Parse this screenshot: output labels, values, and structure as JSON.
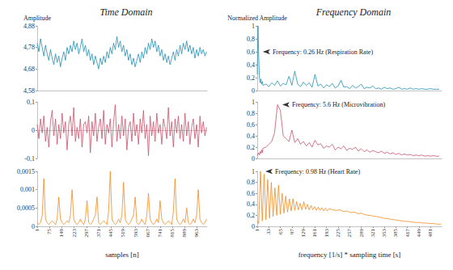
{
  "chart_data": [
    {
      "type": "line",
      "title": "Time Domain",
      "ylabel": "Amplitude",
      "color": "#1f8fb3",
      "grid": false,
      "tick_labels": "y",
      "xlim": [
        1,
        1024
      ],
      "ylim": [
        4.58,
        4.88
      ],
      "yticks": [
        {
          "value": 4.58,
          "label": "4,58"
        },
        {
          "value": 4.68,
          "label": "4,68"
        },
        {
          "value": 4.78,
          "label": "4,78"
        },
        {
          "value": 4.88,
          "label": "4,88"
        }
      ],
      "x": [
        1,
        11,
        21,
        31,
        41,
        51,
        61,
        71,
        81,
        91,
        101,
        111,
        121,
        131,
        141,
        151,
        161,
        171,
        181,
        191,
        201,
        211,
        221,
        231,
        241,
        251,
        261,
        271,
        281,
        291,
        301,
        311,
        321,
        331,
        341,
        351,
        361,
        371,
        381,
        391,
        401,
        411,
        421,
        431,
        441,
        451,
        461,
        471,
        481,
        491,
        501,
        511,
        521,
        531,
        541,
        551,
        561,
        571,
        581,
        591,
        601,
        611,
        621,
        631,
        641,
        651,
        661,
        671,
        681,
        691,
        701,
        711,
        721,
        731,
        741,
        751,
        761,
        771,
        781,
        791,
        801,
        811,
        821,
        831,
        841,
        851,
        861,
        871,
        881,
        891,
        901,
        911,
        921,
        931,
        941,
        951,
        961,
        971,
        981,
        991,
        1001,
        1011,
        1021
      ],
      "values": [
        4.8,
        4.76,
        4.82,
        4.78,
        4.74,
        4.79,
        4.75,
        4.72,
        4.77,
        4.73,
        4.7,
        4.75,
        4.71,
        4.74,
        4.69,
        4.73,
        4.76,
        4.72,
        4.78,
        4.75,
        4.79,
        4.76,
        4.81,
        4.77,
        4.8,
        4.75,
        4.78,
        4.82,
        4.76,
        4.79,
        4.74,
        4.77,
        4.72,
        4.75,
        4.7,
        4.74,
        4.71,
        4.68,
        4.73,
        4.7,
        4.74,
        4.71,
        4.76,
        4.73,
        4.78,
        4.75,
        4.8,
        4.77,
        4.83,
        4.78,
        4.81,
        4.76,
        4.79,
        4.74,
        4.77,
        4.72,
        4.75,
        4.7,
        4.73,
        4.69,
        4.72,
        4.75,
        4.71,
        4.76,
        4.73,
        4.78,
        4.75,
        4.8,
        4.77,
        4.82,
        4.78,
        4.81,
        4.76,
        4.79,
        4.74,
        4.77,
        4.72,
        4.75,
        4.71,
        4.74,
        4.7,
        4.73,
        4.76,
        4.72,
        4.77,
        4.74,
        4.79,
        4.75,
        4.8,
        4.77,
        4.81,
        4.76,
        4.79,
        4.75,
        4.78,
        4.73,
        4.77,
        4.74,
        4.78,
        4.75,
        4.77,
        4.74,
        4.76
      ]
    },
    {
      "type": "line",
      "title": "Frequency Domain",
      "ylabel": "Normalized Amplitude",
      "color": "#1f8fb3",
      "grid": false,
      "tick_labels": "y",
      "xlim": [
        1,
        512
      ],
      "ylim": [
        0,
        1
      ],
      "yticks": [
        0,
        {
          "value": 0.2,
          "label": "0,2"
        },
        {
          "value": 0.4,
          "label": "0,4"
        },
        {
          "value": 0.6,
          "label": "0,6"
        },
        {
          "value": 0.8,
          "label": "0,8"
        },
        1
      ],
      "annotations": [
        {
          "text": "Frequency: 0.26 Hz (Respiration Rate)",
          "x": 3,
          "y": 0.6
        }
      ],
      "x": [
        1,
        3,
        5,
        7,
        9,
        11,
        13,
        15,
        17,
        25,
        33,
        41,
        49,
        57,
        65,
        73,
        81,
        89,
        97,
        105,
        113,
        121,
        129,
        137,
        145,
        153,
        161,
        169,
        177,
        185,
        193,
        201,
        209,
        217,
        225,
        233,
        241,
        249,
        257,
        265,
        273,
        281,
        289,
        297,
        305,
        313,
        321,
        329,
        337,
        345,
        353,
        361,
        369,
        377,
        385,
        393,
        401,
        409,
        417,
        425,
        433,
        441,
        449,
        457,
        465,
        473,
        481,
        489,
        497,
        505
      ],
      "values": [
        0.25,
        1.0,
        0.55,
        0.2,
        0.12,
        0.18,
        0.1,
        0.14,
        0.08,
        0.1,
        0.06,
        0.12,
        0.08,
        0.15,
        0.07,
        0.11,
        0.09,
        0.22,
        0.08,
        0.3,
        0.1,
        0.06,
        0.13,
        0.08,
        0.12,
        0.05,
        0.25,
        0.07,
        0.1,
        0.04,
        0.09,
        0.06,
        0.11,
        0.04,
        0.07,
        0.16,
        0.05,
        0.06,
        0.03,
        0.08,
        0.04,
        0.06,
        0.1,
        0.03,
        0.05,
        0.04,
        0.07,
        0.03,
        0.04,
        0.02,
        0.05,
        0.03,
        0.04,
        0.02,
        0.03,
        0.05,
        0.02,
        0.03,
        0.02,
        0.04,
        0.02,
        0.03,
        0.02,
        0.03,
        0.02,
        0.02,
        0.03,
        0.02,
        0.02,
        0.02
      ]
    },
    {
      "type": "line",
      "color": "#c9516b",
      "grid": false,
      "tick_labels": "y",
      "xlim": [
        1,
        1024
      ],
      "ylim": [
        -0.1,
        0.1
      ],
      "yticks": [
        {
          "value": -0.1,
          "label": "-0,1"
        },
        0,
        {
          "value": 0.1,
          "label": "0,1"
        }
      ],
      "x": [
        1,
        11,
        21,
        31,
        41,
        51,
        61,
        71,
        81,
        91,
        101,
        111,
        121,
        131,
        141,
        151,
        161,
        171,
        181,
        191,
        201,
        211,
        221,
        231,
        241,
        251,
        261,
        271,
        281,
        291,
        301,
        311,
        321,
        331,
        341,
        351,
        361,
        371,
        381,
        391,
        401,
        411,
        421,
        431,
        441,
        451,
        461,
        471,
        481,
        491,
        501,
        511,
        521,
        531,
        541,
        551,
        561,
        571,
        581,
        591,
        601,
        611,
        621,
        631,
        641,
        651,
        661,
        671,
        681,
        691,
        701,
        711,
        721,
        731,
        741,
        751,
        761,
        771,
        781,
        791,
        801,
        811,
        821,
        831,
        841,
        851,
        861,
        871,
        881,
        891,
        901,
        911,
        921,
        931,
        941,
        951,
        961,
        971,
        981,
        991,
        1001,
        1011,
        1021
      ],
      "values": [
        0.02,
        -0.03,
        0.04,
        -0.01,
        0.05,
        -0.04,
        0.01,
        -0.06,
        0.03,
        0.07,
        -0.02,
        0.04,
        -0.05,
        0.02,
        -0.03,
        0.06,
        -0.01,
        0.03,
        -0.07,
        0.02,
        0.05,
        -0.02,
        0.08,
        -0.04,
        0.01,
        -0.03,
        0.04,
        -0.06,
        0.02,
        0.03,
        -0.01,
        0.05,
        -0.08,
        0.03,
        -0.02,
        0.06,
        -0.04,
        0.01,
        0.04,
        -0.03,
        0.07,
        -0.05,
        0.02,
        -0.01,
        0.04,
        -0.06,
        0.03,
        0.09,
        -0.04,
        0.02,
        -0.03,
        0.05,
        -0.02,
        0.04,
        -0.07,
        0.01,
        0.03,
        -0.04,
        0.06,
        -0.02,
        0.02,
        -0.05,
        0.04,
        -0.01,
        0.07,
        -0.03,
        0.02,
        -0.09,
        0.05,
        -0.02,
        0.03,
        -0.04,
        0.06,
        -0.01,
        0.02,
        -0.05,
        0.04,
        0.01,
        -0.03,
        0.08,
        -0.02,
        0.03,
        -0.06,
        0.04,
        -0.01,
        0.05,
        -0.03,
        0.02,
        -0.04,
        0.06,
        -0.02,
        0.03,
        -0.05,
        0.01,
        0.04,
        -0.03,
        0.02,
        -0.06,
        0.05,
        -0.01,
        0.03,
        -0.02,
        0.01
      ]
    },
    {
      "type": "line",
      "color": "#c9516b",
      "grid": false,
      "tick_labels": "y",
      "xlim": [
        1,
        512
      ],
      "ylim": [
        0,
        1
      ],
      "yticks": [
        0,
        {
          "value": 0.2,
          "label": "0,2"
        },
        {
          "value": 0.4,
          "label": "0,4"
        },
        {
          "value": 0.6,
          "label": "0,6"
        },
        {
          "value": 0.8,
          "label": "0,8"
        },
        1
      ],
      "annotations": [
        {
          "text": "Frequency: 5.6 Hz (Microvibration)",
          "x": 57,
          "y": 0.95
        }
      ],
      "x": [
        1,
        3,
        5,
        7,
        9,
        11,
        13,
        15,
        17,
        25,
        33,
        41,
        49,
        57,
        65,
        73,
        81,
        89,
        97,
        105,
        113,
        121,
        129,
        137,
        145,
        153,
        161,
        169,
        177,
        185,
        193,
        201,
        209,
        217,
        225,
        233,
        241,
        249,
        257,
        265,
        273,
        281,
        289,
        297,
        305,
        313,
        321,
        329,
        337,
        345,
        353,
        361,
        369,
        377,
        385,
        393,
        401,
        409,
        417,
        425,
        433,
        441,
        449,
        457,
        465,
        473,
        481,
        489,
        497,
        505
      ],
      "values": [
        0.05,
        0.08,
        0.1,
        0.06,
        0.12,
        0.09,
        0.15,
        0.1,
        0.18,
        0.2,
        0.25,
        0.3,
        0.45,
        0.95,
        0.85,
        0.4,
        0.35,
        0.3,
        0.5,
        0.28,
        0.35,
        0.25,
        0.3,
        0.22,
        0.28,
        0.2,
        0.32,
        0.24,
        0.26,
        0.18,
        0.22,
        0.2,
        0.25,
        0.15,
        0.2,
        0.17,
        0.22,
        0.14,
        0.18,
        0.16,
        0.2,
        0.13,
        0.17,
        0.12,
        0.15,
        0.11,
        0.14,
        0.12,
        0.1,
        0.13,
        0.09,
        0.11,
        0.08,
        0.1,
        0.07,
        0.09,
        0.06,
        0.08,
        0.06,
        0.07,
        0.05,
        0.06,
        0.05,
        0.06,
        0.04,
        0.05,
        0.04,
        0.05,
        0.04,
        0.04
      ]
    },
    {
      "type": "line",
      "xlabel": "samples [n]",
      "color": "#f28a1e",
      "grid": false,
      "xlim": [
        1,
        1024
      ],
      "ylim": [
        0,
        0.0015
      ],
      "xticks": [
        1,
        75,
        149,
        223,
        297,
        371,
        445,
        519,
        593,
        667,
        741,
        815,
        889,
        963
      ],
      "yticks": [
        0,
        {
          "value": 0.0005,
          "label": "0,0005"
        },
        {
          "value": 0.001,
          "label": "0,001"
        },
        {
          "value": 0.0015,
          "label": "0,0015"
        }
      ],
      "x": [
        1,
        11,
        21,
        31,
        41,
        51,
        61,
        71,
        81,
        91,
        101,
        111,
        121,
        131,
        141,
        151,
        161,
        171,
        181,
        191,
        201,
        211,
        221,
        231,
        241,
        251,
        261,
        271,
        281,
        291,
        301,
        311,
        321,
        331,
        341,
        351,
        361,
        371,
        381,
        391,
        401,
        411,
        421,
        431,
        441,
        451,
        461,
        471,
        481,
        491,
        501,
        511,
        521,
        531,
        541,
        551,
        561,
        571,
        581,
        591,
        601,
        611,
        621,
        631,
        641,
        651,
        661,
        671,
        681,
        691,
        701,
        711,
        721,
        731,
        741,
        751,
        761,
        771,
        781,
        791,
        801,
        811,
        821,
        831,
        841,
        851,
        861,
        871,
        881,
        891,
        901,
        911,
        921,
        931,
        941,
        951,
        961,
        971,
        981,
        991,
        1001,
        1011,
        1021
      ],
      "values": [
        0.0001,
        5e-05,
        0.0001,
        0.0003,
        0.0013,
        0.0002,
        0.0001,
        5e-05,
        0.0001,
        0.00015,
        0.0001,
        5e-05,
        0.0002,
        0.0008,
        0.0002,
        0.0001,
        5e-05,
        0.0001,
        0.00015,
        0.0001,
        0.0003,
        0.001,
        0.0002,
        0.0001,
        5e-05,
        0.0001,
        0.0002,
        0.0001,
        5e-05,
        0.0002,
        0.0007,
        0.0001,
        5e-05,
        0.0001,
        0.0002,
        0.0003,
        0.0008,
        0.0001,
        5e-05,
        0.0001,
        0.00015,
        0.0001,
        5e-05,
        0.0004,
        0.0015,
        0.0002,
        0.0001,
        5e-05,
        0.0001,
        0.0002,
        0.0001,
        0.0003,
        0.0012,
        0.0002,
        0.0001,
        5e-05,
        0.0001,
        0.0002,
        0.0003,
        0.0008,
        0.0001,
        5e-05,
        0.0001,
        0.0002,
        0.0001,
        5e-05,
        0.0003,
        0.0009,
        0.0002,
        0.0001,
        5e-05,
        0.0001,
        0.0002,
        0.0001,
        0.0007,
        0.0002,
        0.0001,
        5e-05,
        0.0001,
        0.00015,
        0.0001,
        5e-05,
        0.0004,
        0.0013,
        0.0002,
        0.0001,
        5e-05,
        0.0001,
        0.0002,
        0.0001,
        0.0005,
        0.0001,
        5e-05,
        0.0001,
        0.0002,
        0.0001,
        0.0003,
        0.001,
        0.0002,
        0.0001,
        5e-05,
        0.0001,
        0.0002
      ]
    },
    {
      "type": "line",
      "xlabel": "frequency [1/s] * sampling time [s]",
      "color": "#f28a1e",
      "grid": false,
      "xlim": [
        1,
        512
      ],
      "ylim": [
        0,
        1
      ],
      "xticks": [
        1,
        33,
        65,
        97,
        129,
        161,
        193,
        225,
        257,
        289,
        321,
        353,
        385,
        417,
        449,
        481
      ],
      "yticks": [
        0,
        {
          "value": 0.2,
          "label": "0,2"
        },
        {
          "value": 0.4,
          "label": "0,4"
        },
        {
          "value": 0.6,
          "label": "0,6"
        },
        {
          "value": 0.8,
          "label": "0,8"
        },
        1
      ],
      "annotations": [
        {
          "text": "Frequency: 0.98 Hz (Heart Rate)",
          "x": 10,
          "y": 1.0
        }
      ],
      "x": [
        1,
        5,
        10,
        15,
        20,
        25,
        30,
        35,
        40,
        45,
        50,
        55,
        60,
        65,
        70,
        75,
        80,
        85,
        90,
        95,
        100,
        105,
        110,
        115,
        120,
        125,
        130,
        135,
        140,
        145,
        150,
        155,
        160,
        165,
        170,
        175,
        180,
        185,
        190,
        195,
        200,
        210,
        220,
        230,
        240,
        250,
        260,
        270,
        280,
        290,
        300,
        310,
        320,
        330,
        340,
        350,
        360,
        370,
        380,
        390,
        400,
        410,
        420,
        430,
        440,
        450,
        460,
        470,
        480,
        490,
        500,
        510
      ],
      "values": [
        0.1,
        0.05,
        1.0,
        0.1,
        0.95,
        0.12,
        0.85,
        0.15,
        0.8,
        0.18,
        0.7,
        0.2,
        0.75,
        0.22,
        0.6,
        0.24,
        0.55,
        0.26,
        0.5,
        0.28,
        0.5,
        0.29,
        0.45,
        0.3,
        0.42,
        0.3,
        0.45,
        0.31,
        0.4,
        0.3,
        0.38,
        0.3,
        0.36,
        0.29,
        0.35,
        0.29,
        0.34,
        0.28,
        0.33,
        0.28,
        0.32,
        0.3,
        0.29,
        0.3,
        0.27,
        0.28,
        0.25,
        0.26,
        0.23,
        0.24,
        0.21,
        0.2,
        0.19,
        0.18,
        0.17,
        0.15,
        0.14,
        0.13,
        0.12,
        0.11,
        0.1,
        0.09,
        0.09,
        0.08,
        0.07,
        0.07,
        0.06,
        0.06,
        0.05,
        0.05,
        0.04,
        0.04
      ]
    }
  ]
}
